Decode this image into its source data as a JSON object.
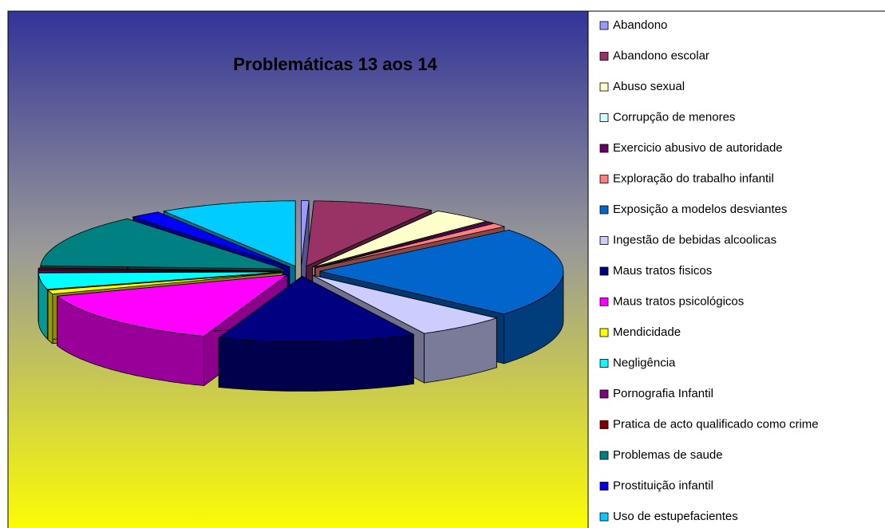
{
  "chart_data": {
    "type": "pie",
    "title": "Problemáticas 13 aos 14",
    "categories": [
      "Abandono",
      "Abandono escolar",
      "Abuso sexual",
      "Corrupção de menores",
      "Exercicio abusivo de autoridade",
      "Exploração do trabalho infantil",
      "Exposição a modelos desviantes",
      "Ingestão de bebidas alcoolicas",
      "Maus tratos fisicos",
      "Maus tratos psicológicos",
      "Mendicidade",
      "Negligência",
      "Pornografia Infantil",
      "Pratica de acto qualificado como crime",
      "Problemas de saude",
      "Prostituição infantil",
      "Uso de estupefacientes"
    ],
    "values": [
      0.5,
      8,
      4,
      0,
      0.5,
      1,
      22,
      6,
      13,
      14,
      1,
      4,
      0.5,
      0.5,
      13,
      2,
      9
    ],
    "colors": [
      "#9999FF",
      "#993366",
      "#FFFFCC",
      "#CCFFFF",
      "#660066",
      "#FF8080",
      "#0066CC",
      "#CCCCFF",
      "#000080",
      "#FF00FF",
      "#FFFF00",
      "#00FFFF",
      "#800080",
      "#800000",
      "#008080",
      "#0000FF",
      "#00CCFF"
    ]
  }
}
